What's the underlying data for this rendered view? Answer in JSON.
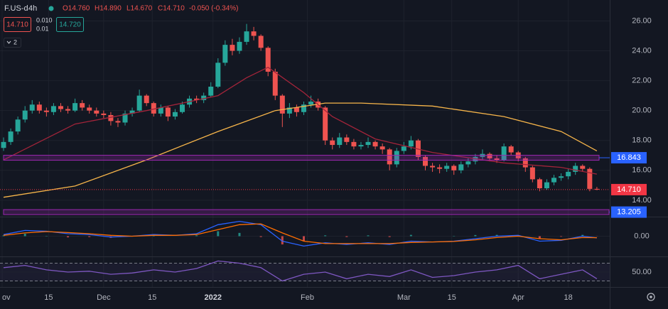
{
  "header": {
    "symbol": "F.US-d",
    "interval": "4h",
    "open": "O14.760",
    "high": "H14.890",
    "low": "L14.670",
    "close": "C14.710",
    "change": "-0.050 (-0.34%)",
    "sell": "14.710",
    "spread_top": "0.010",
    "spread_bottom": "0.01",
    "buy": "14.720",
    "indicators": "2"
  },
  "chart_data": [
    {
      "type": "candlestick",
      "up_color": "#26a69a",
      "down_color": "#ef5350",
      "grid": true,
      "xlim": [
        -0.5,
        84.8
      ],
      "xticks": [
        {
          "value": -0.2,
          "label": "ov"
        },
        {
          "value": 6.3,
          "label": "15"
        },
        {
          "value": 14,
          "label": "Dec"
        },
        {
          "value": 20.8,
          "label": "15"
        },
        {
          "value": 29.3,
          "label": "2022"
        },
        {
          "value": 42.5,
          "label": "Feb"
        },
        {
          "value": 56,
          "label": "Mar"
        },
        {
          "value": 62.7,
          "label": "15"
        },
        {
          "value": 72,
          "label": "Apr"
        },
        {
          "value": 79,
          "label": "18"
        }
      ],
      "ylim": [
        12.9,
        27.4
      ],
      "yticks": [
        {
          "value": 14,
          "label": "14.00"
        },
        {
          "value": 16,
          "label": "16.00"
        },
        {
          "value": 18,
          "label": "18.00"
        },
        {
          "value": 20,
          "label": "20.00"
        },
        {
          "value": 22,
          "label": "22.00"
        },
        {
          "value": 24,
          "label": "24.00"
        },
        {
          "value": 26,
          "label": "26.00"
        }
      ],
      "open": [
        17.5,
        17.9,
        18.6,
        19.4,
        20.0,
        20.4,
        20.0,
        19.9,
        20.3,
        20.1,
        20.0,
        20.5,
        20.2,
        20.0,
        19.8,
        19.7,
        19.3,
        19.2,
        19.8,
        20.0,
        21.0,
        20.5,
        19.8,
        20.2,
        19.6,
        19.9,
        20.4,
        20.8,
        20.7,
        21.0,
        21.6,
        23.2,
        24.4,
        24.0,
        24.6,
        25.3,
        25.0,
        24.2,
        22.6,
        21.0,
        19.8,
        20.2,
        19.9,
        20.4,
        20.6,
        20.2,
        18.0,
        17.7,
        18.2,
        17.9,
        17.6,
        17.7,
        17.9,
        17.6,
        17.4,
        16.4,
        17.3,
        17.6,
        18.0,
        16.9,
        16.3,
        16.2,
        16.1,
        16.3,
        16.0,
        16.4,
        16.6,
        16.9,
        17.1,
        16.8,
        16.7,
        17.6,
        17.2,
        16.8,
        16.2,
        15.4,
        14.8,
        15.2,
        15.5,
        15.6,
        15.9,
        16.3,
        16.1,
        14.76
      ],
      "high": [
        18.2,
        18.8,
        19.6,
        20.3,
        20.7,
        20.6,
        20.2,
        20.5,
        20.5,
        20.3,
        20.8,
        20.7,
        20.4,
        20.2,
        20.0,
        19.9,
        19.5,
        20.0,
        20.2,
        21.4,
        21.1,
        20.6,
        20.4,
        20.3,
        20.1,
        20.6,
        21.0,
        21.0,
        21.2,
        21.9,
        23.5,
        24.7,
        24.8,
        24.9,
        25.8,
        25.6,
        25.1,
        24.3,
        22.8,
        21.1,
        20.5,
        20.4,
        20.6,
        21.0,
        20.8,
        20.3,
        18.2,
        18.5,
        18.4,
        18.1,
        17.9,
        18.2,
        18.0,
        17.8,
        17.5,
        17.5,
        17.9,
        18.3,
        18.1,
        17.0,
        16.5,
        16.4,
        16.5,
        16.4,
        16.6,
        16.8,
        17.1,
        17.4,
        17.2,
        17.0,
        17.8,
        17.7,
        17.3,
        16.9,
        16.3,
        15.5,
        15.4,
        15.7,
        15.8,
        16.1,
        16.5,
        16.4,
        16.2,
        14.89
      ],
      "low": [
        17.3,
        17.7,
        18.4,
        19.2,
        19.8,
        19.8,
        19.6,
        19.7,
        19.9,
        19.8,
        19.9,
        20.0,
        19.8,
        19.6,
        19.5,
        19.0,
        18.9,
        19.0,
        19.6,
        19.9,
        20.3,
        19.6,
        19.6,
        19.3,
        19.4,
        19.8,
        20.2,
        20.5,
        20.5,
        20.9,
        21.5,
        23.0,
        23.7,
        23.8,
        24.4,
        24.7,
        24.0,
        22.3,
        20.7,
        18.9,
        19.5,
        19.6,
        19.7,
        20.2,
        20.0,
        17.7,
        17.4,
        17.5,
        17.7,
        17.4,
        17.4,
        17.5,
        17.4,
        17.1,
        16.0,
        16.2,
        17.1,
        17.4,
        16.7,
        16.0,
        15.9,
        15.8,
        15.9,
        15.7,
        15.8,
        16.2,
        16.4,
        16.7,
        16.6,
        16.5,
        16.6,
        17.0,
        16.6,
        15.9,
        15.2,
        14.6,
        14.7,
        15.0,
        15.3,
        15.4,
        15.7,
        15.9,
        14.6,
        14.67
      ],
      "close": [
        17.9,
        18.6,
        19.4,
        20.0,
        20.4,
        20.0,
        19.9,
        20.3,
        20.1,
        20.0,
        20.5,
        20.2,
        20.0,
        19.8,
        19.7,
        19.3,
        19.2,
        19.8,
        20.0,
        21.0,
        20.5,
        19.8,
        20.2,
        19.6,
        19.9,
        20.4,
        20.8,
        20.7,
        21.0,
        21.6,
        23.2,
        24.4,
        24.0,
        24.6,
        25.3,
        25.0,
        24.2,
        22.6,
        21.0,
        19.8,
        20.2,
        19.9,
        20.4,
        20.6,
        20.2,
        18.0,
        17.7,
        18.2,
        17.9,
        17.6,
        17.7,
        17.9,
        17.6,
        17.4,
        16.4,
        17.3,
        17.6,
        18.0,
        16.9,
        16.3,
        16.2,
        16.1,
        16.3,
        16.0,
        16.4,
        16.6,
        16.9,
        17.1,
        16.8,
        16.7,
        17.6,
        17.2,
        16.8,
        16.2,
        15.4,
        14.8,
        15.2,
        15.5,
        15.6,
        15.9,
        16.3,
        16.1,
        14.76,
        14.71
      ],
      "overlays": [
        {
          "color": "#f7b54a",
          "x": [
            0,
            10,
            20,
            30,
            38,
            45,
            50,
            60,
            70,
            78,
            83
          ],
          "values": [
            14.2,
            14.95,
            16.7,
            18.6,
            20.0,
            20.5,
            20.5,
            20.3,
            19.6,
            18.6,
            17.3
          ]
        },
        {
          "color": "#a3243a",
          "x": [
            0,
            10,
            20,
            30,
            34,
            37,
            42,
            46,
            52,
            60,
            70,
            78,
            83
          ],
          "values": [
            16.7,
            19.1,
            20.0,
            21.0,
            22.2,
            22.9,
            21.2,
            19.6,
            18.1,
            17.2,
            16.5,
            16.2,
            15.75
          ]
        }
      ],
      "price_lines": [
        {
          "value": 16.843,
          "color": "#2962ff"
        },
        {
          "value": 13.205,
          "color": "#2962ff"
        }
      ],
      "last_price": {
        "value": 14.71,
        "label": "14.710",
        "color": "#f23645"
      }
    },
    {
      "type": "macd",
      "ylim": [
        -1.1,
        1.1
      ],
      "yticks": [
        {
          "value": 0,
          "label": "0.00"
        }
      ],
      "x": [
        0,
        3,
        6,
        9,
        12,
        15,
        18,
        21,
        24,
        27,
        30,
        33,
        36,
        39,
        42,
        45,
        48,
        51,
        54,
        57,
        60,
        63,
        66,
        69,
        72,
        75,
        78,
        81,
        83
      ],
      "series": [
        {
          "style": "histogram",
          "color": "#ef5350",
          "values": [
            0.05,
            0.15,
            0.02,
            -0.07,
            -0.05,
            -0.1,
            0,
            0.05,
            0,
            0.05,
            0.3,
            0.2,
            -0.05,
            -0.5,
            -0.3,
            0.05,
            -0.05,
            0.05,
            -0.05,
            0.08,
            0,
            0.02,
            0.07,
            0.08,
            0.05,
            -0.15,
            -0.03,
            0.08,
            -0.01
          ]
        },
        {
          "style": "line",
          "color": "#2962ff",
          "values": [
            0.1,
            0.35,
            0.3,
            0.15,
            0.1,
            -0.05,
            0.0,
            0.1,
            0.05,
            0.15,
            0.7,
            0.9,
            0.7,
            -0.3,
            -0.6,
            -0.4,
            -0.5,
            -0.4,
            -0.5,
            -0.3,
            -0.35,
            -0.3,
            -0.15,
            0.0,
            0.05,
            -0.3,
            -0.25,
            0.0,
            -0.1
          ]
        },
        {
          "style": "line",
          "color": "#ff6d00",
          "values": [
            0.05,
            0.2,
            0.28,
            0.22,
            0.15,
            0.05,
            0.0,
            0.05,
            0.05,
            0.1,
            0.4,
            0.7,
            0.75,
            0.2,
            -0.3,
            -0.45,
            -0.45,
            -0.45,
            -0.45,
            -0.38,
            -0.35,
            -0.32,
            -0.22,
            -0.08,
            0.0,
            -0.15,
            -0.22,
            -0.08,
            -0.09
          ]
        }
      ]
    },
    {
      "type": "rsi",
      "ylim": [
        18,
        82
      ],
      "yticks": [
        {
          "value": 50,
          "label": "50.00"
        }
      ],
      "band_levels": [
        30,
        70
      ],
      "x": [
        0,
        3,
        6,
        9,
        12,
        15,
        18,
        21,
        24,
        27,
        30,
        33,
        36,
        39,
        42,
        45,
        48,
        51,
        54,
        57,
        60,
        63,
        66,
        69,
        72,
        75,
        78,
        81,
        83
      ],
      "series": [
        {
          "style": "line",
          "color": "#7e57c2",
          "values": [
            60,
            65,
            55,
            50,
            52,
            45,
            48,
            55,
            50,
            58,
            75,
            70,
            60,
            30,
            45,
            50,
            35,
            45,
            40,
            55,
            38,
            42,
            50,
            55,
            65,
            35,
            45,
            55,
            35
          ]
        }
      ]
    }
  ]
}
